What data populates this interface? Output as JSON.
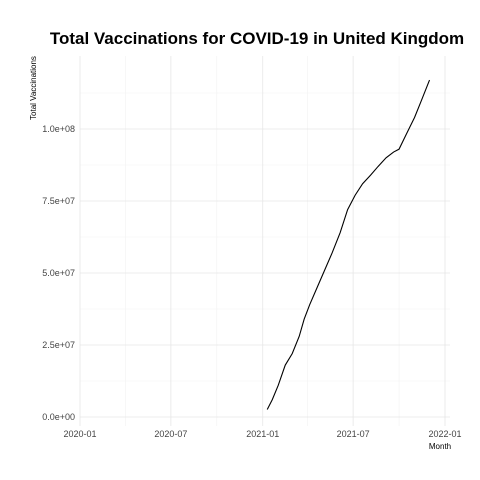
{
  "chart_data": {
    "type": "line",
    "title": "Total Vaccinations for COVID-19 in United Kingdom",
    "xlabel": "Month",
    "ylabel": "Total Vaccinations",
    "x_type": "date",
    "xlim": [
      "2020-01-01",
      "2022-01-01"
    ],
    "ylim": [
      0,
      120000000
    ],
    "x_ticks": [
      {
        "value": "2020-01-01",
        "label": "2020-01"
      },
      {
        "value": "2020-07-01",
        "label": "2020-07"
      },
      {
        "value": "2021-01-01",
        "label": "2021-01"
      },
      {
        "value": "2021-07-01",
        "label": "2021-07"
      },
      {
        "value": "2022-01-01",
        "label": "2022-01"
      }
    ],
    "x_minor_ticks": [
      "2020-04-01",
      "2020-10-01",
      "2021-04-01",
      "2021-10-01"
    ],
    "y_ticks": [
      {
        "value": 0,
        "label": "0.0e+00"
      },
      {
        "value": 25000000,
        "label": "2.5e+07"
      },
      {
        "value": 50000000,
        "label": "5.0e+07"
      },
      {
        "value": 75000000,
        "label": "7.5e+07"
      },
      {
        "value": 100000000,
        "label": "1.0e+08"
      }
    ],
    "y_minor_ticks": [
      12500000,
      37500000,
      62500000,
      87500000,
      112500000
    ],
    "grid": true,
    "legend": "none",
    "series": [
      {
        "color": "#000000",
        "x": [
          "2021-01-10",
          "2021-01-20",
          "2021-02-01",
          "2021-02-15",
          "2021-03-01",
          "2021-03-15",
          "2021-03-25",
          "2021-04-05",
          "2021-04-20",
          "2021-05-05",
          "2021-05-20",
          "2021-06-05",
          "2021-06-20",
          "2021-07-05",
          "2021-07-20",
          "2021-08-05",
          "2021-08-20",
          "2021-09-05",
          "2021-09-20",
          "2021-10-01",
          "2021-10-15",
          "2021-11-01",
          "2021-11-15",
          "2021-12-01"
        ],
        "values": [
          2600000,
          6000000,
          11000000,
          18000000,
          22000000,
          28000000,
          34000000,
          39000000,
          45000000,
          51000000,
          57000000,
          64000000,
          72000000,
          77000000,
          81000000,
          84000000,
          87000000,
          90000000,
          92000000,
          93000000,
          98000000,
          104000000,
          110000000,
          117000000
        ]
      }
    ]
  }
}
